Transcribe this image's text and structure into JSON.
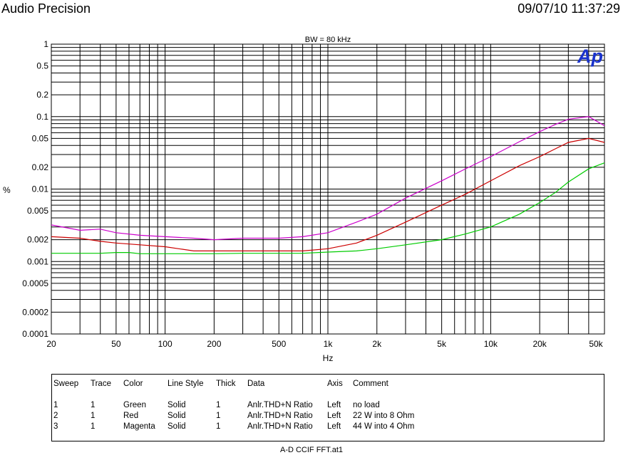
{
  "header": {
    "app_title": "Audio Precision",
    "datetime": "09/07/10 11:37:29"
  },
  "logo_text": "Ap",
  "chart_data": {
    "type": "line",
    "title": "BW = 80 kHz",
    "xlabel": "Hz",
    "ylabel": "%",
    "x_scale": "log",
    "y_scale": "log",
    "xlim": [
      20,
      50000
    ],
    "ylim": [
      0.0001,
      1
    ],
    "grid": true,
    "x_ticks": [
      20,
      50,
      100,
      200,
      500,
      1000,
      2000,
      5000,
      10000,
      20000,
      50000
    ],
    "x_tick_labels": [
      "20",
      "50",
      "100",
      "200",
      "500",
      "1k",
      "2k",
      "5k",
      "10k",
      "20k",
      "50k"
    ],
    "y_ticks": [
      1,
      0.5,
      0.2,
      0.1,
      0.05,
      0.02,
      0.01,
      0.005,
      0.002,
      0.001,
      0.0005,
      0.0002,
      0.0001
    ],
    "y_tick_labels": [
      "1",
      "0.5",
      "0.2",
      "0.1",
      "0.05",
      "0.02",
      "0.01",
      "0.005",
      "0.002",
      "0.001",
      "0.0005",
      "0.0002",
      "0.0001"
    ],
    "series": [
      {
        "color": "#00cc00",
        "x": [
          20,
          30,
          40,
          50,
          60,
          70,
          100,
          200,
          300,
          500,
          700,
          1000,
          1500,
          2000,
          3000,
          5000,
          7000,
          10000,
          15000,
          20000,
          25000,
          30000,
          40000,
          50000
        ],
        "y": [
          0.0013,
          0.0013,
          0.0013,
          0.00133,
          0.00133,
          0.00128,
          0.00128,
          0.00128,
          0.0013,
          0.0013,
          0.0013,
          0.00135,
          0.0014,
          0.0015,
          0.0017,
          0.002,
          0.0024,
          0.003,
          0.0045,
          0.0065,
          0.009,
          0.0125,
          0.019,
          0.023
        ]
      },
      {
        "color": "#cc0000",
        "x": [
          20,
          30,
          40,
          50,
          70,
          100,
          150,
          200,
          300,
          500,
          700,
          1000,
          1500,
          2000,
          3000,
          5000,
          7000,
          10000,
          15000,
          20000,
          25000,
          30000,
          40000,
          50000
        ],
        "y": [
          0.0022,
          0.0021,
          0.0019,
          0.0018,
          0.0017,
          0.0016,
          0.0014,
          0.0014,
          0.0014,
          0.0014,
          0.0014,
          0.0015,
          0.0018,
          0.0023,
          0.0035,
          0.006,
          0.0085,
          0.013,
          0.021,
          0.028,
          0.036,
          0.044,
          0.05,
          0.044
        ]
      },
      {
        "color": "#cc00cc",
        "x": [
          20,
          30,
          40,
          50,
          70,
          100,
          150,
          200,
          300,
          500,
          700,
          1000,
          1500,
          2000,
          3000,
          5000,
          7000,
          10000,
          15000,
          20000,
          25000,
          30000,
          40000,
          50000
        ],
        "y": [
          0.0032,
          0.0027,
          0.0028,
          0.0025,
          0.0023,
          0.0022,
          0.0021,
          0.002,
          0.0021,
          0.0021,
          0.0022,
          0.0025,
          0.0035,
          0.0045,
          0.0075,
          0.013,
          0.019,
          0.028,
          0.045,
          0.062,
          0.078,
          0.092,
          0.1,
          0.075
        ]
      }
    ]
  },
  "legend_table": {
    "headers": [
      "Sweep",
      "Trace",
      "Color",
      "Line Style",
      "Thick",
      "Data",
      "Axis",
      "Comment"
    ],
    "rows": [
      [
        "1",
        "1",
        "Green",
        "Solid",
        "1",
        "Anlr.THD+N Ratio",
        "Left",
        "no load"
      ],
      [
        "2",
        "1",
        "Red",
        "Solid",
        "1",
        "Anlr.THD+N Ratio",
        "Left",
        "22 W into 8 Ohm"
      ],
      [
        "3",
        "1",
        "Magenta",
        "Solid",
        "1",
        "Anlr.THD+N Ratio",
        "Left",
        "44 W into 4 Ohm"
      ]
    ]
  },
  "footer": {
    "filename": "A-D CCIF FFT.at1"
  }
}
